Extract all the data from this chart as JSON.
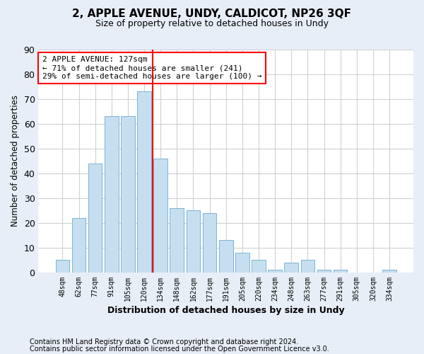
{
  "title": "2, APPLE AVENUE, UNDY, CALDICOT, NP26 3QF",
  "subtitle": "Size of property relative to detached houses in Undy",
  "xlabel": "Distribution of detached houses by size in Undy",
  "ylabel": "Number of detached properties",
  "footer_line1": "Contains HM Land Registry data © Crown copyright and database right 2024.",
  "footer_line2": "Contains public sector information licensed under the Open Government Licence v3.0.",
  "bar_labels": [
    "48sqm",
    "62sqm",
    "77sqm",
    "91sqm",
    "105sqm",
    "120sqm",
    "134sqm",
    "148sqm",
    "162sqm",
    "177sqm",
    "191sqm",
    "205sqm",
    "220sqm",
    "234sqm",
    "248sqm",
    "263sqm",
    "277sqm",
    "291sqm",
    "305sqm",
    "320sqm",
    "334sqm"
  ],
  "bar_values": [
    5,
    22,
    44,
    63,
    63,
    73,
    46,
    26,
    25,
    24,
    13,
    8,
    5,
    1,
    4,
    5,
    1,
    1,
    0,
    0,
    1
  ],
  "bar_color": "#c6dff0",
  "bar_edgecolor": "#7ab3d4",
  "ylim": [
    0,
    90
  ],
  "yticks": [
    0,
    10,
    20,
    30,
    40,
    50,
    60,
    70,
    80,
    90
  ],
  "vline_color": "red",
  "vline_position": 5.5,
  "annotation_text": "2 APPLE AVENUE: 127sqm\n← 71% of detached houses are smaller (241)\n29% of semi-detached houses are larger (100) →",
  "annotation_box_color": "white",
  "annotation_box_edgecolor": "red",
  "background_color": "#e8eef8",
  "plot_background_color": "white",
  "grid_color": "#d0d0d0",
  "title_fontsize": 11,
  "subtitle_fontsize": 9
}
